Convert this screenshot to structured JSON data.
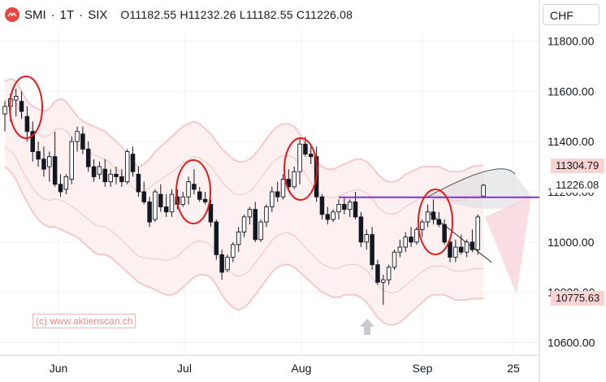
{
  "header": {
    "symbol": "SMI",
    "interval": "1T",
    "exchange": "SIX",
    "open": "O11182.55",
    "high": "H11232.26",
    "low": "L11182.55",
    "close": "C11226.08"
  },
  "currency_selector": {
    "value": "CHF"
  },
  "watermark": "(c) www.aktienscan.ch",
  "price_tags": {
    "upper_band": "11304.79",
    "last": "11226.08",
    "lower_band": "10775.63"
  },
  "colors": {
    "up": "#ffffff",
    "down": "#131722",
    "band": "#f6c4c4",
    "band_fill": "#fdeeee",
    "resistance": "#8b2fc9",
    "highlight": "#e01b1b"
  },
  "chart_data": {
    "type": "candlestick",
    "title": "SMI · 1T · SIX",
    "y_axis": {
      "min": 10550,
      "max": 11850,
      "ticks": [
        10600,
        10800,
        11000,
        11200,
        11400,
        11600,
        11800
      ],
      "tick_labels": [
        "10600.00",
        "10800.00",
        "11000.00",
        "11200.00",
        "11400.00",
        "11600.00",
        "11800.00"
      ]
    },
    "x_axis": {
      "labels": [
        "Jun",
        "Jul",
        "Aug",
        "Sep",
        "25"
      ]
    },
    "resistance_level": 11178,
    "candles": [
      [
        11510,
        11560,
        11440,
        11540
      ],
      [
        11540,
        11590,
        11480,
        11570
      ],
      [
        11565,
        11610,
        11500,
        11580
      ],
      [
        11560,
        11600,
        11490,
        11520
      ],
      [
        11500,
        11540,
        11400,
        11440
      ],
      [
        11440,
        11480,
        11320,
        11360
      ],
      [
        11360,
        11400,
        11300,
        11330
      ],
      [
        11330,
        11380,
        11260,
        11290
      ],
      [
        11300,
        11360,
        11240,
        11340
      ],
      [
        11340,
        11440,
        11220,
        11230
      ],
      [
        11230,
        11270,
        11180,
        11200
      ],
      [
        11210,
        11270,
        11190,
        11260
      ],
      [
        11250,
        11420,
        11230,
        11400
      ],
      [
        11400,
        11460,
        11360,
        11440
      ],
      [
        11430,
        11460,
        11350,
        11370
      ],
      [
        11370,
        11400,
        11280,
        11300
      ],
      [
        11300,
        11330,
        11240,
        11260
      ],
      [
        11270,
        11320,
        11250,
        11300
      ],
      [
        11290,
        11330,
        11220,
        11240
      ],
      [
        11240,
        11290,
        11220,
        11270
      ],
      [
        11270,
        11300,
        11230,
        11260
      ],
      [
        11260,
        11290,
        11220,
        11240
      ],
      [
        11240,
        11370,
        11230,
        11360
      ],
      [
        11350,
        11380,
        11260,
        11280
      ],
      [
        11270,
        11300,
        11180,
        11200
      ],
      [
        11200,
        11240,
        11150,
        11160
      ],
      [
        11160,
        11180,
        11060,
        11080
      ],
      [
        11090,
        11210,
        11080,
        11200
      ],
      [
        11190,
        11230,
        11120,
        11140
      ],
      [
        11140,
        11190,
        11100,
        11120
      ],
      [
        11120,
        11210,
        11100,
        11190
      ],
      [
        11180,
        11210,
        11130,
        11150
      ],
      [
        11150,
        11200,
        11140,
        11180
      ],
      [
        11180,
        11260,
        11150,
        11240
      ],
      [
        11230,
        11290,
        11190,
        11210
      ],
      [
        11200,
        11220,
        11160,
        11170
      ],
      [
        11170,
        11200,
        11150,
        11160
      ],
      [
        11150,
        11170,
        11060,
        11080
      ],
      [
        11080,
        11090,
        10930,
        10950
      ],
      [
        10950,
        10970,
        10850,
        10880
      ],
      [
        10890,
        10950,
        10880,
        10940
      ],
      [
        10940,
        11000,
        10920,
        10990
      ],
      [
        10990,
        11060,
        10960,
        11040
      ],
      [
        11040,
        11110,
        11020,
        11100
      ],
      [
        11100,
        11140,
        11070,
        11130
      ],
      [
        11130,
        11160,
        11000,
        11010
      ],
      [
        11010,
        11090,
        11000,
        11080
      ],
      [
        11080,
        11150,
        11060,
        11140
      ],
      [
        11140,
        11220,
        11120,
        11200
      ],
      [
        11200,
        11240,
        11160,
        11180
      ],
      [
        11180,
        11270,
        11170,
        11250
      ],
      [
        11250,
        11290,
        11200,
        11220
      ],
      [
        11220,
        11300,
        11210,
        11280
      ],
      [
        11280,
        11410,
        11230,
        11390
      ],
      [
        11390,
        11420,
        11340,
        11350
      ],
      [
        11350,
        11380,
        11310,
        11340
      ],
      [
        11340,
        11380,
        11160,
        11180
      ],
      [
        11180,
        11190,
        11090,
        11110
      ],
      [
        11110,
        11140,
        11070,
        11090
      ],
      [
        11090,
        11130,
        11080,
        11120
      ],
      [
        11120,
        11170,
        11090,
        11150
      ],
      [
        11150,
        11180,
        11110,
        11130
      ],
      [
        11130,
        11170,
        11100,
        11160
      ],
      [
        11160,
        11200,
        11090,
        11100
      ],
      [
        11100,
        11120,
        10980,
        11000
      ],
      [
        11000,
        11050,
        10970,
        11030
      ],
      [
        11030,
        11060,
        10890,
        10910
      ],
      [
        10910,
        10930,
        10830,
        10840
      ],
      [
        10840,
        10870,
        10750,
        10850
      ],
      [
        10850,
        10910,
        10830,
        10900
      ],
      [
        10900,
        10970,
        10890,
        10960
      ],
      [
        10960,
        11010,
        10940,
        10980
      ],
      [
        10980,
        11040,
        10960,
        11020
      ],
      [
        11020,
        11060,
        10980,
        11000
      ],
      [
        11000,
        11060,
        10990,
        11050
      ],
      [
        11050,
        11090,
        11020,
        11080
      ],
      [
        11080,
        11150,
        11060,
        11120
      ],
      [
        11120,
        11170,
        11070,
        11090
      ],
      [
        11090,
        11120,
        11060,
        11070
      ],
      [
        11070,
        11090,
        10990,
        11000
      ],
      [
        11000,
        11010,
        10920,
        10940
      ],
      [
        10940,
        11010,
        10920,
        10980
      ],
      [
        10980,
        11030,
        10950,
        10960
      ],
      [
        10960,
        11010,
        10940,
        11000
      ],
      [
        11000,
        11050,
        10960,
        10970
      ],
      [
        10970,
        11110,
        10950,
        11100
      ],
      [
        11183,
        11232,
        11183,
        11226
      ]
    ],
    "upper_band": [
      11640,
      11650,
      11640,
      11600,
      11560,
      11540,
      11530,
      11520,
      11530,
      11560,
      11570,
      11560,
      11530,
      11500,
      11480,
      11470,
      11460,
      11450,
      11440,
      11420,
      11400,
      11380,
      11350,
      11320,
      11300,
      11310,
      11330,
      11360,
      11380,
      11400,
      11420,
      11440,
      11460,
      11470,
      11480,
      11470,
      11450,
      11430,
      11400,
      11370,
      11350,
      11330,
      11320,
      11320,
      11330,
      11350,
      11380,
      11410,
      11440,
      11460,
      11470,
      11470,
      11460,
      11430,
      11390,
      11350,
      11320,
      11300,
      11290,
      11290,
      11300,
      11310,
      11320,
      11330,
      11330,
      11320,
      11300,
      11270,
      11250,
      11240,
      11240,
      11250,
      11270,
      11280,
      11290,
      11300,
      11300,
      11300,
      11300,
      11290,
      11280,
      11280,
      11280,
      11290,
      11300,
      11305,
      11305
    ],
    "lower_band": [
      11300,
      11280,
      11250,
      11200,
      11160,
      11120,
      11090,
      11070,
      11060,
      11060,
      11050,
      11040,
      11030,
      11020,
      11000,
      10980,
      10960,
      10950,
      10950,
      10940,
      10920,
      10900,
      10880,
      10860,
      10840,
      10830,
      10820,
      10810,
      10800,
      10790,
      10790,
      10800,
      10820,
      10840,
      10860,
      10870,
      10870,
      10860,
      10830,
      10790,
      10760,
      10740,
      10730,
      10740,
      10760,
      10790,
      10820,
      10850,
      10880,
      10900,
      10910,
      10910,
      10900,
      10880,
      10860,
      10840,
      10820,
      10800,
      10790,
      10780,
      10780,
      10790,
      10790,
      10790,
      10780,
      10760,
      10730,
      10700,
      10680,
      10670,
      10670,
      10680,
      10700,
      10720,
      10740,
      10760,
      10780,
      10790,
      10790,
      10790,
      10780,
      10770,
      10770,
      10770,
      10775,
      10775,
      10775
    ]
  }
}
